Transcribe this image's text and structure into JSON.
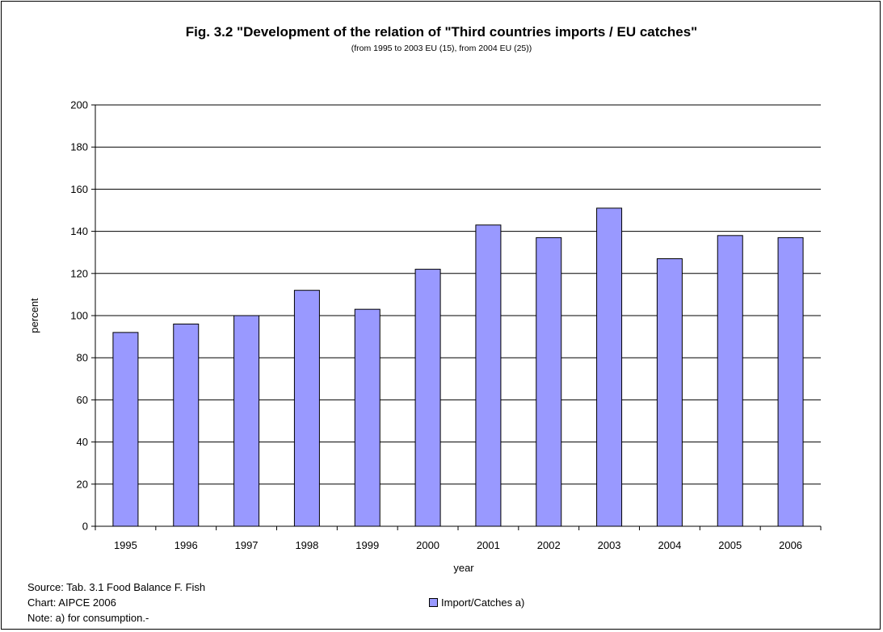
{
  "chart_data": {
    "type": "bar",
    "title": "Fig. 3.2 \"Development of the relation of \"Third countries imports / EU catches\"",
    "subtitle": "(from 1995 to 2003 EU (15), from 2004 EU (25))",
    "xlabel": "year",
    "ylabel": "percent",
    "ylim": [
      0,
      200
    ],
    "yticks": [
      0,
      20,
      40,
      60,
      80,
      100,
      120,
      140,
      160,
      180,
      200
    ],
    "categories": [
      "1995",
      "1996",
      "1997",
      "1998",
      "1999",
      "2000",
      "2001",
      "2002",
      "2003",
      "2004",
      "2005",
      "2006"
    ],
    "series": [
      {
        "name": "Import/Catches a)",
        "values": [
          92,
          96,
          100,
          112,
          103,
          122,
          143,
          137,
          151,
          127,
          138,
          137
        ],
        "color": "#9999ff"
      }
    ],
    "grid": true,
    "legend_position": "bottom"
  },
  "notes": {
    "source": "Source: Tab. 3.1 Food Balance F. Fish",
    "chart": "Chart: AIPCE 2006",
    "note": "Note: a) for consumption.-"
  }
}
